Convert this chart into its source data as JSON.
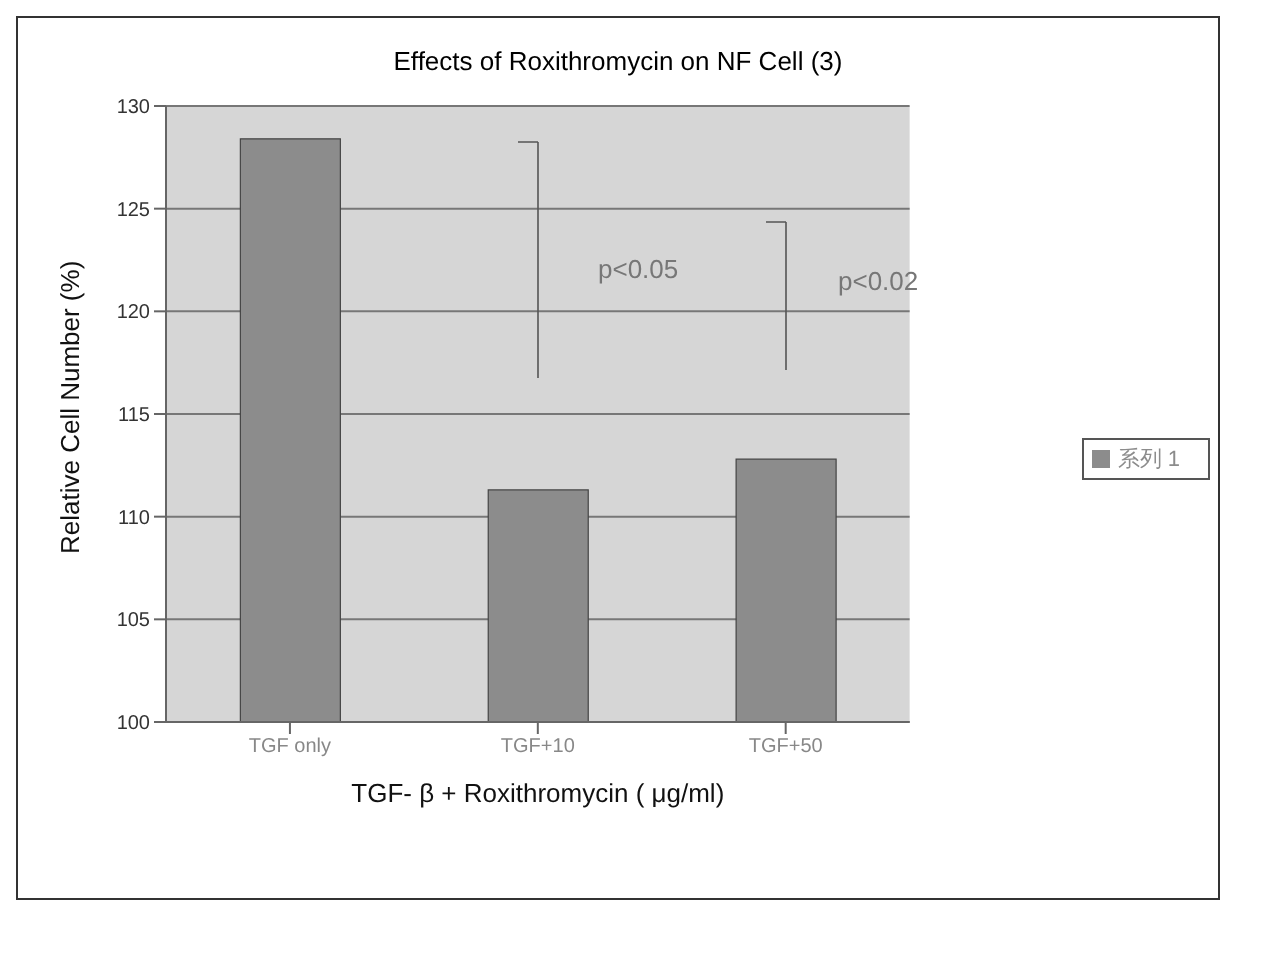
{
  "chart_data": {
    "type": "bar",
    "title": "Effects of Roxithromycin on NF Cell (3)",
    "xlabel": "TGF- β + Roxithromycin (  μg/ml)",
    "ylabel": "Relative Cell Number (%)",
    "categories": [
      "TGF only",
      "TGF+10",
      "TGF+50"
    ],
    "series": [
      {
        "name": "系列 1",
        "color": "#8c8c8c",
        "values": [
          128.4,
          111.3,
          112.8
        ]
      }
    ],
    "ylim": [
      100,
      130
    ],
    "yticks": [
      100,
      105,
      110,
      115,
      120,
      125,
      130
    ],
    "grid": "y",
    "legend": "right",
    "annotations": [
      "p<0.05",
      "p<0.02"
    ]
  }
}
